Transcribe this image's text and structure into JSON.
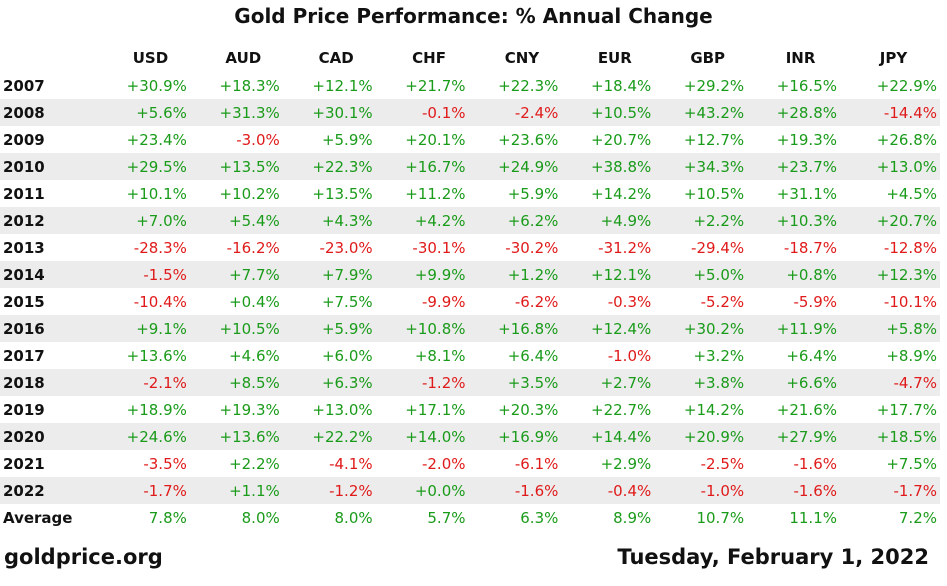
{
  "chart_data": {
    "type": "table",
    "title": "Gold Price Performance: % Annual Change",
    "columns": [
      "USD",
      "AUD",
      "CAD",
      "CHF",
      "CNY",
      "EUR",
      "GBP",
      "INR",
      "JPY"
    ],
    "rows": [
      {
        "year": "2007",
        "values": [
          "+30.9%",
          "+18.3%",
          "+12.1%",
          "+21.7%",
          "+22.3%",
          "+18.4%",
          "+29.2%",
          "+16.5%",
          "+22.9%"
        ]
      },
      {
        "year": "2008",
        "values": [
          "+5.6%",
          "+31.3%",
          "+30.1%",
          "-0.1%",
          "-2.4%",
          "+10.5%",
          "+43.2%",
          "+28.8%",
          "-14.4%"
        ]
      },
      {
        "year": "2009",
        "values": [
          "+23.4%",
          "-3.0%",
          "+5.9%",
          "+20.1%",
          "+23.6%",
          "+20.7%",
          "+12.7%",
          "+19.3%",
          "+26.8%"
        ]
      },
      {
        "year": "2010",
        "values": [
          "+29.5%",
          "+13.5%",
          "+22.3%",
          "+16.7%",
          "+24.9%",
          "+38.8%",
          "+34.3%",
          "+23.7%",
          "+13.0%"
        ]
      },
      {
        "year": "2011",
        "values": [
          "+10.1%",
          "+10.2%",
          "+13.5%",
          "+11.2%",
          "+5.9%",
          "+14.2%",
          "+10.5%",
          "+31.1%",
          "+4.5%"
        ]
      },
      {
        "year": "2012",
        "values": [
          "+7.0%",
          "+5.4%",
          "+4.3%",
          "+4.2%",
          "+6.2%",
          "+4.9%",
          "+2.2%",
          "+10.3%",
          "+20.7%"
        ]
      },
      {
        "year": "2013",
        "values": [
          "-28.3%",
          "-16.2%",
          "-23.0%",
          "-30.1%",
          "-30.2%",
          "-31.2%",
          "-29.4%",
          "-18.7%",
          "-12.8%"
        ]
      },
      {
        "year": "2014",
        "values": [
          "-1.5%",
          "+7.7%",
          "+7.9%",
          "+9.9%",
          "+1.2%",
          "+12.1%",
          "+5.0%",
          "+0.8%",
          "+12.3%"
        ]
      },
      {
        "year": "2015",
        "values": [
          "-10.4%",
          "+0.4%",
          "+7.5%",
          "-9.9%",
          "-6.2%",
          "-0.3%",
          "-5.2%",
          "-5.9%",
          "-10.1%"
        ]
      },
      {
        "year": "2016",
        "values": [
          "+9.1%",
          "+10.5%",
          "+5.9%",
          "+10.8%",
          "+16.8%",
          "+12.4%",
          "+30.2%",
          "+11.9%",
          "+5.8%"
        ]
      },
      {
        "year": "2017",
        "values": [
          "+13.6%",
          "+4.6%",
          "+6.0%",
          "+8.1%",
          "+6.4%",
          "-1.0%",
          "+3.2%",
          "+6.4%",
          "+8.9%"
        ]
      },
      {
        "year": "2018",
        "values": [
          "-2.1%",
          "+8.5%",
          "+6.3%",
          "-1.2%",
          "+3.5%",
          "+2.7%",
          "+3.8%",
          "+6.6%",
          "-4.7%"
        ]
      },
      {
        "year": "2019",
        "values": [
          "+18.9%",
          "+19.3%",
          "+13.0%",
          "+17.1%",
          "+20.3%",
          "+22.7%",
          "+14.2%",
          "+21.6%",
          "+17.7%"
        ]
      },
      {
        "year": "2020",
        "values": [
          "+24.6%",
          "+13.6%",
          "+22.2%",
          "+14.0%",
          "+16.9%",
          "+14.4%",
          "+20.9%",
          "+27.9%",
          "+18.5%"
        ]
      },
      {
        "year": "2021",
        "values": [
          "-3.5%",
          "+2.2%",
          "-4.1%",
          "-2.0%",
          "-6.1%",
          "+2.9%",
          "-2.5%",
          "-1.6%",
          "+7.5%"
        ]
      },
      {
        "year": "2022",
        "values": [
          "-1.7%",
          "+1.1%",
          "-1.2%",
          "+0.0%",
          "-1.6%",
          "-0.4%",
          "-1.0%",
          "-1.6%",
          "-1.7%"
        ]
      }
    ],
    "average": {
      "label": "Average",
      "values": [
        "7.8%",
        "8.0%",
        "8.0%",
        "5.7%",
        "6.3%",
        "8.9%",
        "10.7%",
        "11.1%",
        "7.2%"
      ]
    }
  },
  "footer": {
    "source": "goldprice.org",
    "date": "Tuesday, February 1, 2022"
  },
  "colors": {
    "positive": "#1a9b1a",
    "negative": "#e01a1a",
    "stripe": "#ececec"
  }
}
